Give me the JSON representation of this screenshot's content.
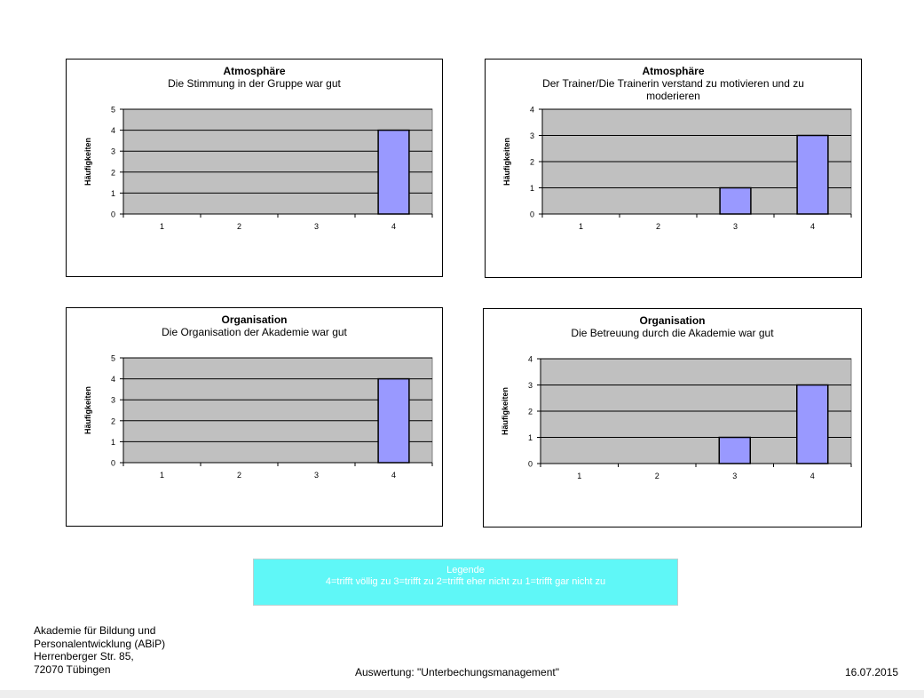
{
  "chart_data": [
    {
      "type": "bar",
      "title": "Atmosphäre",
      "subtitle": [
        "Die Stimmung in der Gruppe war gut"
      ],
      "ylabel": "Häufigkeiten",
      "categories": [
        "1",
        "2",
        "3",
        "4"
      ],
      "values": [
        0,
        0,
        0,
        4
      ],
      "ylim": [
        0,
        5
      ],
      "yticks": [
        "0",
        "1",
        "2",
        "3",
        "4",
        "5"
      ],
      "grid": true,
      "bar_color": "#9999ff",
      "plot_bg": "#c0c0c0"
    },
    {
      "type": "bar",
      "title": "Atmosphäre",
      "subtitle": [
        "Der Trainer/Die Trainerin verstand zu motivieren und zu",
        "moderieren"
      ],
      "ylabel": "Häufigkeiten",
      "categories": [
        "1",
        "2",
        "3",
        "4"
      ],
      "values": [
        0,
        0,
        1,
        3
      ],
      "ylim": [
        0,
        4
      ],
      "yticks": [
        "0",
        "1",
        "2",
        "3",
        "4"
      ],
      "grid": true,
      "bar_color": "#9999ff",
      "plot_bg": "#c0c0c0"
    },
    {
      "type": "bar",
      "title": "Organisation",
      "subtitle": [
        "Die Organisation der Akademie war gut"
      ],
      "ylabel": "Häufigkeiten",
      "categories": [
        "1",
        "2",
        "3",
        "4"
      ],
      "values": [
        0,
        0,
        0,
        4
      ],
      "ylim": [
        0,
        5
      ],
      "yticks": [
        "0",
        "1",
        "2",
        "3",
        "4",
        "5"
      ],
      "grid": true,
      "bar_color": "#9999ff",
      "plot_bg": "#c0c0c0"
    },
    {
      "type": "bar",
      "title": "Organisation",
      "subtitle": [
        "Die Betreuung durch die Akademie war gut"
      ],
      "ylabel": "Häufigkeiten",
      "categories": [
        "1",
        "2",
        "3",
        "4"
      ],
      "values": [
        0,
        0,
        1,
        3
      ],
      "ylim": [
        0,
        4
      ],
      "yticks": [
        "0",
        "1",
        "2",
        "3",
        "4"
      ],
      "grid": true,
      "bar_color": "#9999ff",
      "plot_bg": "#c0c0c0"
    }
  ],
  "legend": {
    "title": "Legende",
    "text": "4=trifft völlig zu  3=trifft zu  2=trifft eher nicht zu  1=trifft gar nicht zu",
    "color": "#5ff7f7"
  },
  "footer": {
    "address": [
      "Akademie für Bildung und",
      "Personalentwicklung (ABiP)",
      "Herrenberger Str. 85,",
      "72070 Tübingen"
    ],
    "center": "Auswertung: \"Unterbechungsmanagement\"",
    "date": "16.07.2015"
  }
}
